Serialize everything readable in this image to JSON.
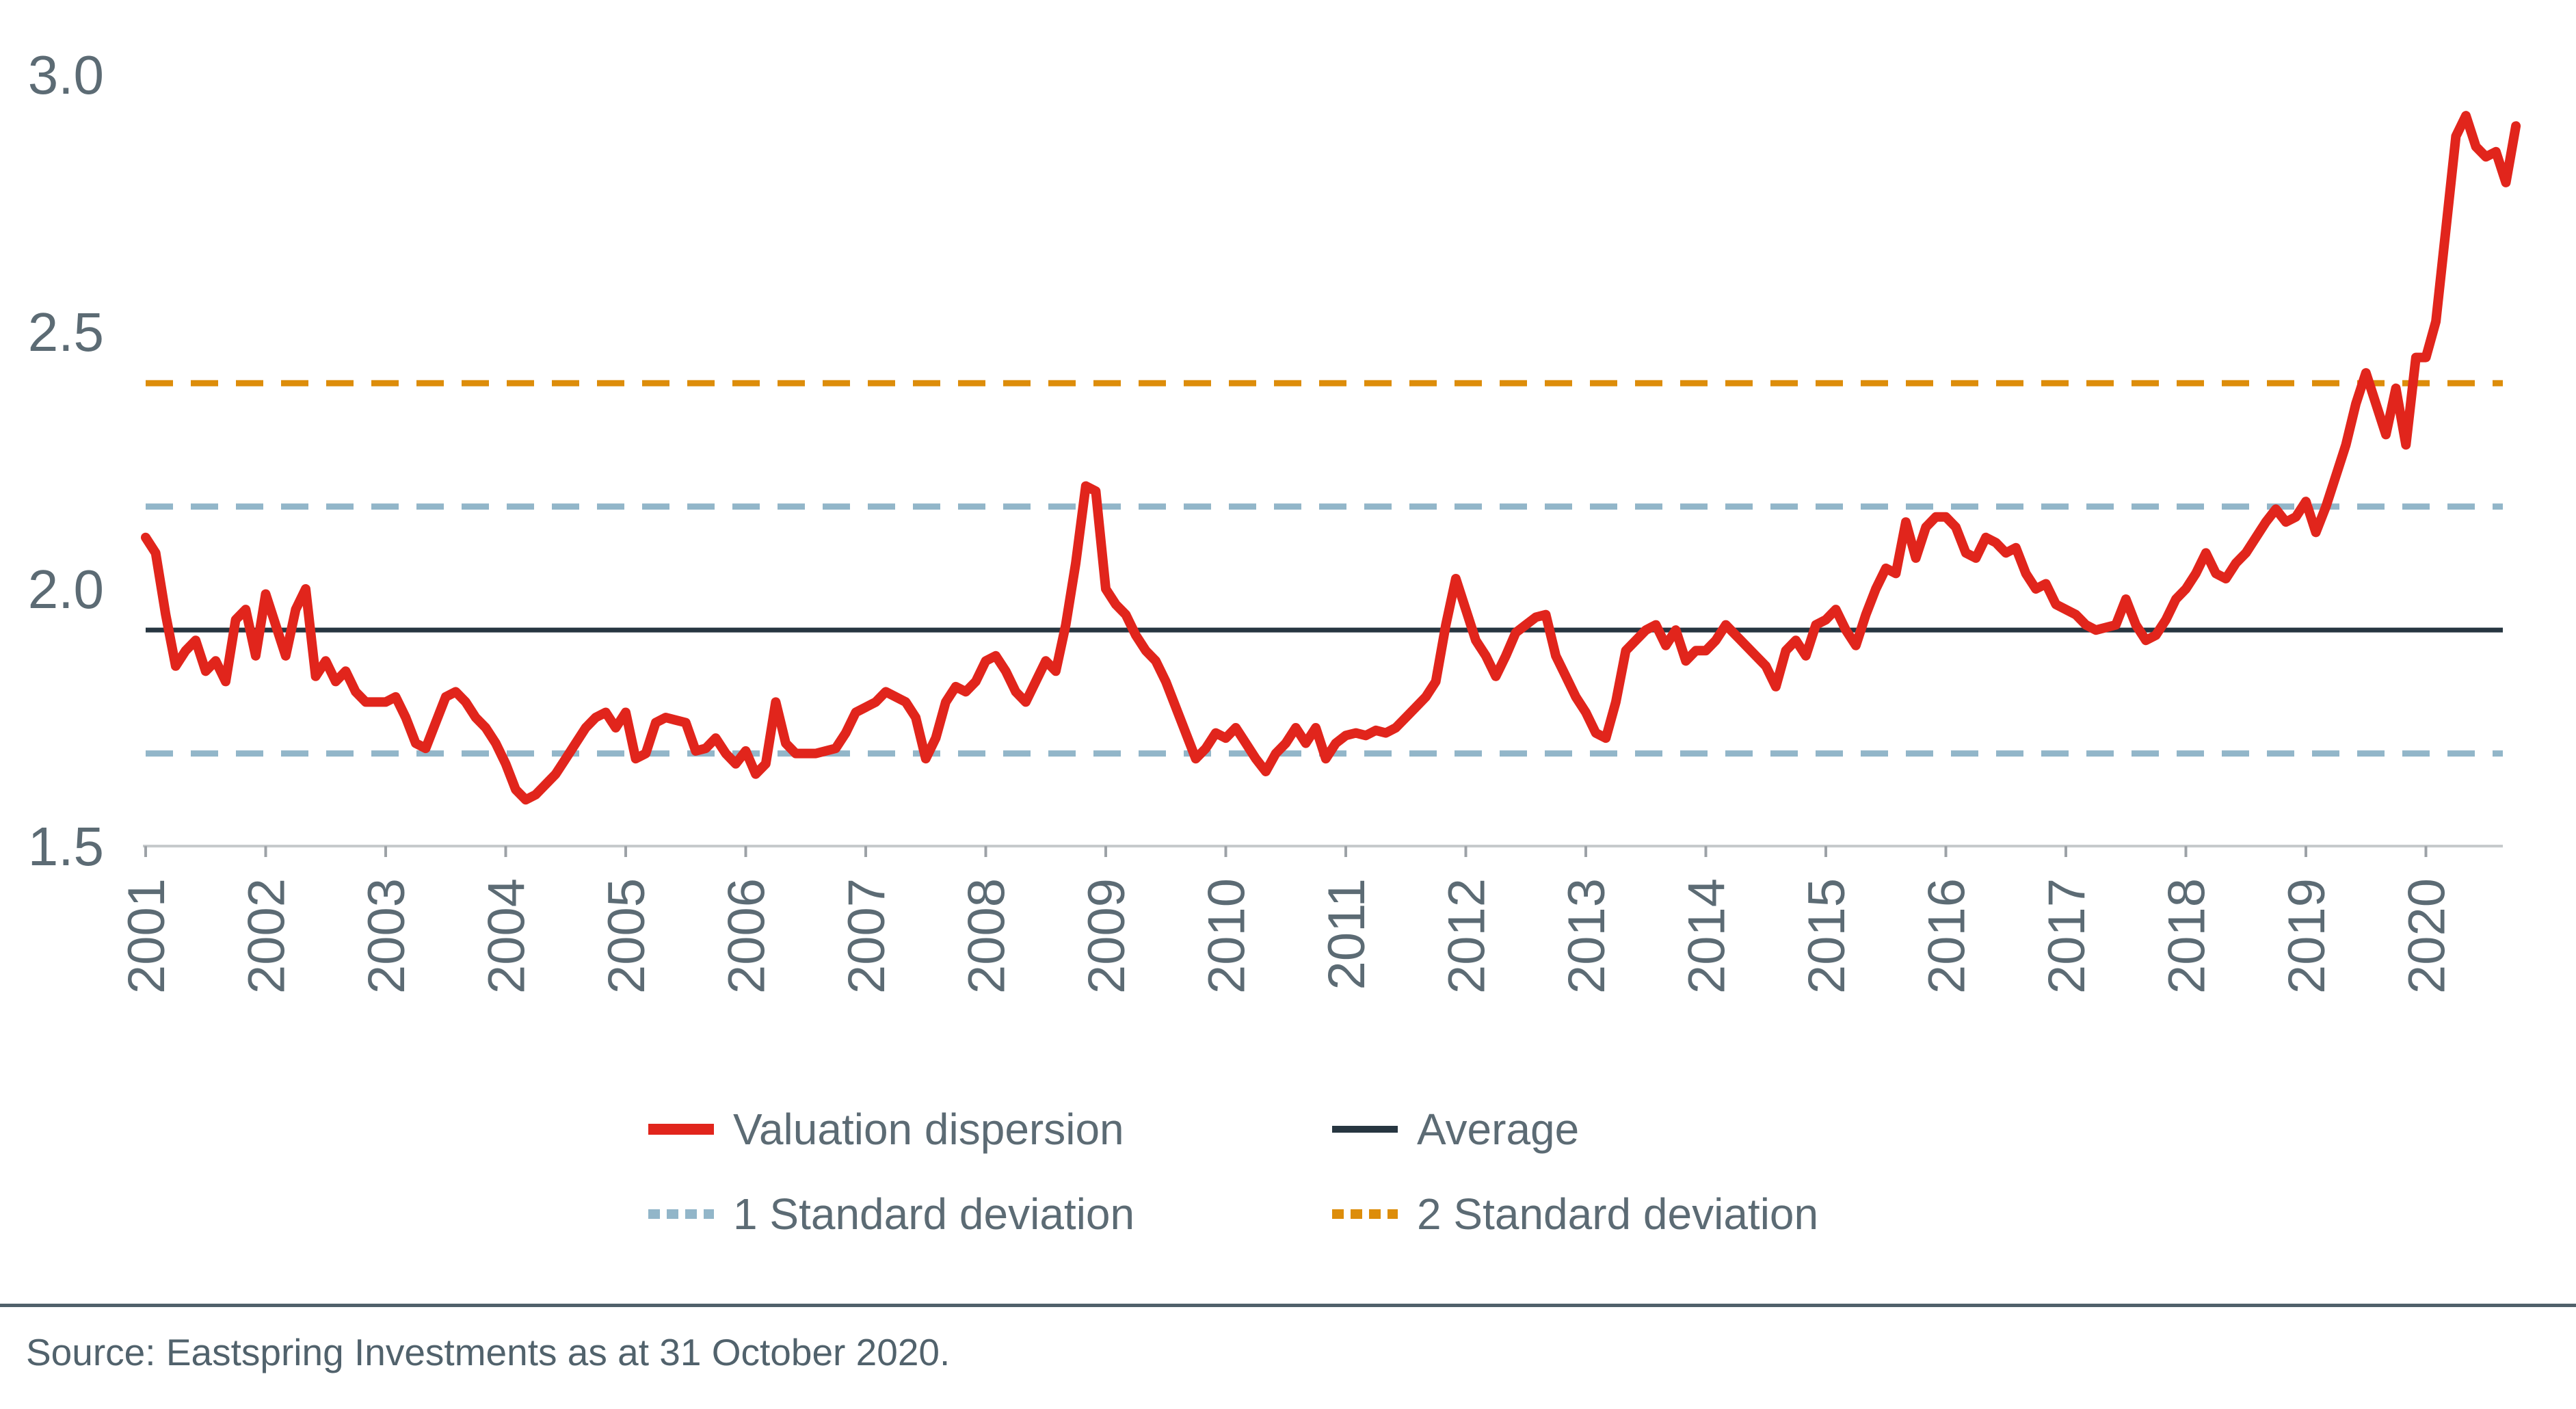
{
  "chart_data": {
    "type": "line",
    "title": "",
    "xlabel": "",
    "ylabel": "",
    "grid": false,
    "background": "#ffffff",
    "y_axis": {
      "ticks": [
        1.5,
        2.0,
        2.5,
        3.0
      ],
      "tick_label_format": "one_decimal",
      "range": [
        1.5,
        3.05
      ],
      "label_color": "#5C6B74"
    },
    "x_axis": {
      "tick_years": [
        2001,
        2002,
        2003,
        2004,
        2005,
        2006,
        2007,
        2008,
        2009,
        2010,
        2011,
        2012,
        2013,
        2014,
        2015,
        2016,
        2017,
        2018,
        2019,
        2020
      ],
      "axis_line_color": "#C6CACC",
      "tick_mark_color": "#9DA2A7",
      "label_rotation_degrees": -90,
      "label_color": "#5C6B74"
    },
    "series": [
      {
        "name": "Valuation dispersion",
        "color": "#E1251C",
        "style": "solid",
        "frequency": "monthly",
        "start": "2001-01",
        "end": "2020-10",
        "values": [
          2.1,
          2.07,
          1.95,
          1.85,
          1.88,
          1.9,
          1.84,
          1.86,
          1.82,
          1.94,
          1.96,
          1.87,
          1.99,
          1.93,
          1.87,
          1.96,
          2.0,
          1.83,
          1.86,
          1.82,
          1.84,
          1.8,
          1.78,
          1.78,
          1.78,
          1.79,
          1.75,
          1.7,
          1.69,
          1.74,
          1.79,
          1.8,
          1.78,
          1.75,
          1.73,
          1.7,
          1.66,
          1.61,
          1.59,
          1.6,
          1.62,
          1.64,
          1.67,
          1.7,
          1.73,
          1.75,
          1.76,
          1.73,
          1.76,
          1.67,
          1.68,
          1.74,
          1.75,
          1.745,
          1.74,
          1.685,
          1.69,
          1.71,
          1.68,
          1.66,
          1.685,
          1.64,
          1.66,
          1.78,
          1.7,
          1.68,
          1.68,
          1.68,
          1.685,
          1.69,
          1.72,
          1.76,
          1.77,
          1.78,
          1.8,
          1.79,
          1.78,
          1.75,
          1.67,
          1.71,
          1.78,
          1.81,
          1.8,
          1.82,
          1.86,
          1.87,
          1.84,
          1.8,
          1.78,
          1.82,
          1.86,
          1.84,
          1.93,
          2.05,
          2.2,
          2.19,
          2.0,
          1.97,
          1.95,
          1.91,
          1.88,
          1.86,
          1.82,
          1.77,
          1.72,
          1.67,
          1.69,
          1.72,
          1.71,
          1.73,
          1.7,
          1.67,
          1.645,
          1.68,
          1.7,
          1.73,
          1.7,
          1.73,
          1.67,
          1.7,
          1.715,
          1.72,
          1.715,
          1.725,
          1.72,
          1.73,
          1.75,
          1.77,
          1.79,
          1.82,
          1.93,
          2.02,
          1.96,
          1.9,
          1.87,
          1.83,
          1.87,
          1.915,
          1.93,
          1.945,
          1.95,
          1.87,
          1.83,
          1.79,
          1.76,
          1.72,
          1.71,
          1.78,
          1.88,
          1.9,
          1.92,
          1.93,
          1.89,
          1.92,
          1.86,
          1.88,
          1.88,
          1.9,
          1.93,
          1.91,
          1.89,
          1.87,
          1.85,
          1.81,
          1.88,
          1.9,
          1.87,
          1.93,
          1.94,
          1.96,
          1.92,
          1.89,
          1.95,
          2.0,
          2.04,
          2.03,
          2.13,
          2.06,
          2.12,
          2.14,
          2.14,
          2.12,
          2.07,
          2.06,
          2.1,
          2.09,
          2.07,
          2.08,
          2.03,
          2.0,
          2.01,
          1.97,
          1.96,
          1.95,
          1.93,
          1.92,
          1.925,
          1.93,
          1.98,
          1.93,
          1.9,
          1.91,
          1.94,
          1.98,
          2.0,
          2.03,
          2.07,
          2.03,
          2.02,
          2.05,
          2.07,
          2.1,
          2.13,
          2.155,
          2.13,
          2.14,
          2.17,
          2.11,
          2.16,
          2.22,
          2.28,
          2.36,
          2.42,
          2.36,
          2.3,
          2.39,
          2.28,
          2.45,
          2.45,
          2.52,
          2.7,
          2.88,
          2.92,
          2.86,
          2.84,
          2.85,
          2.79,
          2.9
        ]
      }
    ],
    "reference_lines": [
      {
        "name": "Average",
        "values": [
          1.92
        ],
        "color": "#273641",
        "style": "solid"
      },
      {
        "name": "1 Standard deviation",
        "values": [
          2.16,
          1.68
        ],
        "color": "#92B6C9",
        "style": "dashed"
      },
      {
        "name": "2 Standard deviation",
        "values": [
          2.4
        ],
        "color": "#DD8D0A",
        "style": "dashed"
      }
    ],
    "legend": {
      "position": "bottom-center",
      "items": [
        {
          "label": "Valuation dispersion",
          "color": "#E1251C",
          "swatch_style": "solid-thick"
        },
        {
          "label": "Average",
          "color": "#273641",
          "swatch_style": "solid-thin"
        },
        {
          "label": "1 Standard deviation",
          "color": "#92B6C9",
          "swatch_style": "dashed"
        },
        {
          "label": "2 Standard deviation",
          "color": "#DD8D0A",
          "swatch_style": "dashed"
        }
      ]
    }
  },
  "footer": {
    "source_text": "Source: Eastspring Investments as at 31 October 2020."
  }
}
